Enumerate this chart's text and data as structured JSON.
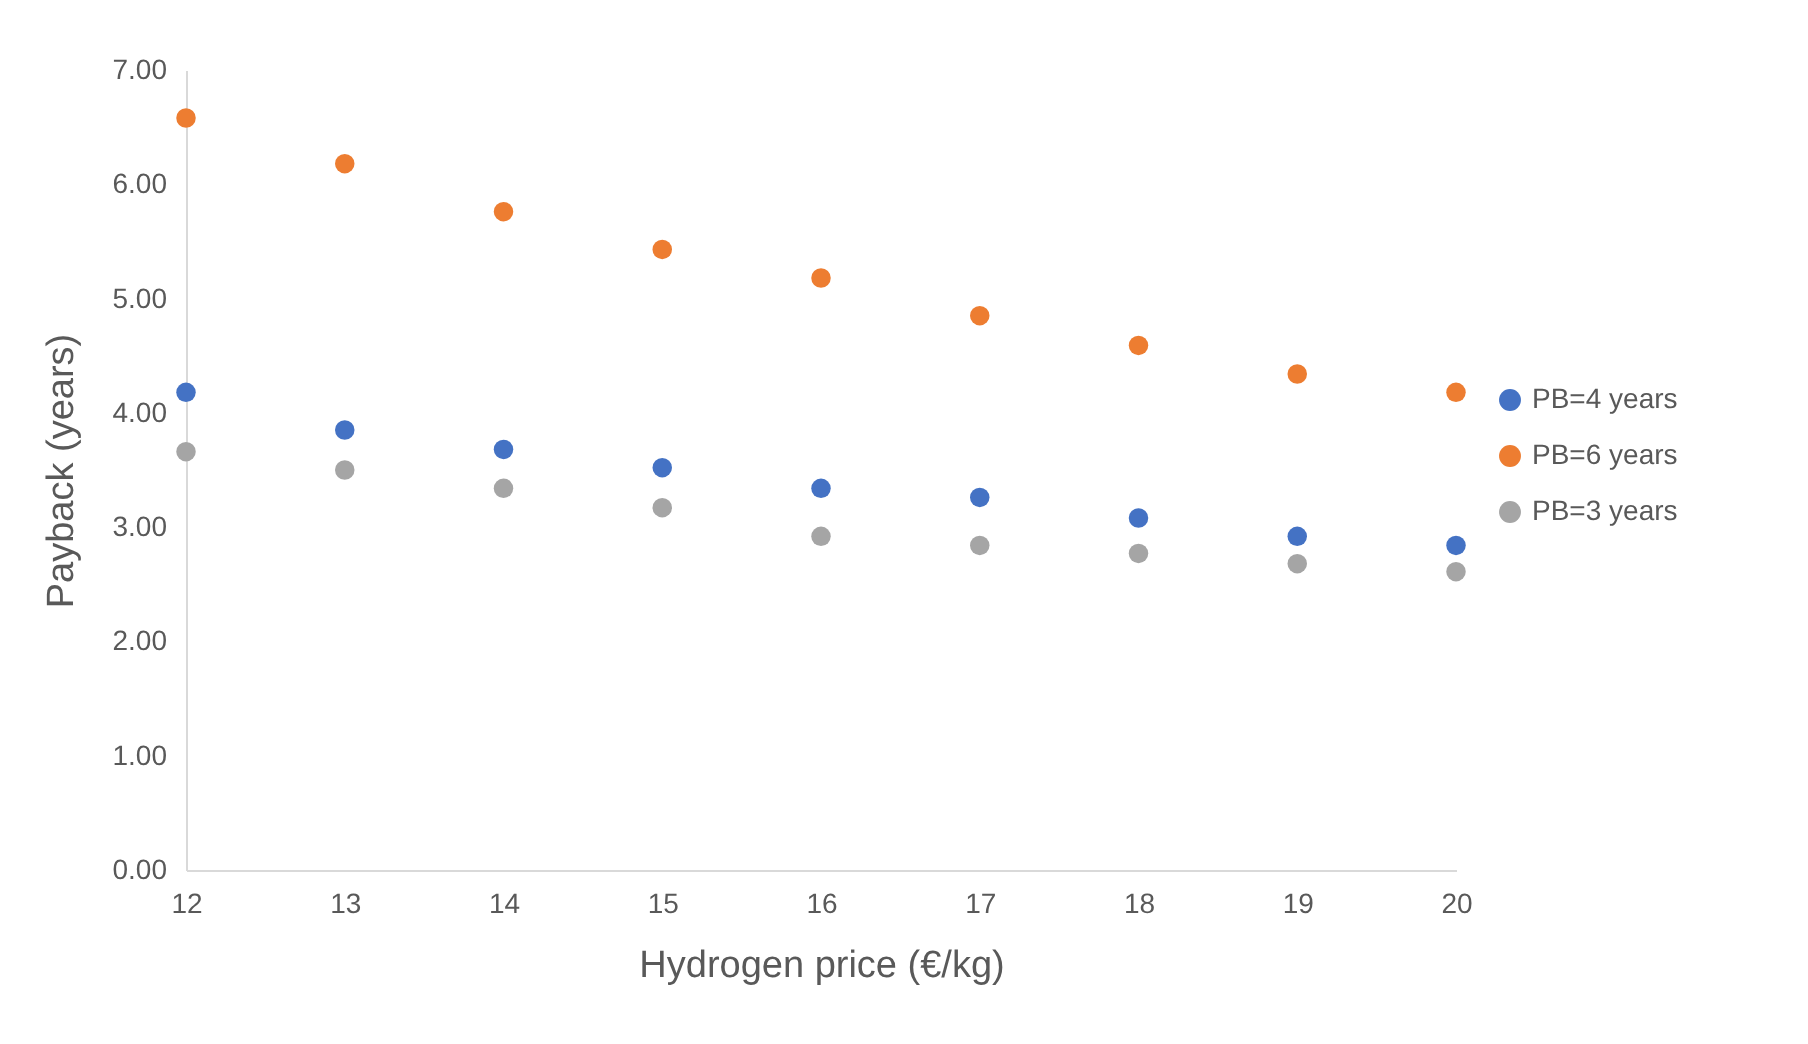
{
  "chart_data": {
    "type": "scatter",
    "xlabel": "Hydrogen price (€/kg)",
    "ylabel": "Payback  (years)",
    "x": [
      12,
      13,
      14,
      15,
      16,
      17,
      18,
      19,
      20
    ],
    "series": [
      {
        "name": "PB=4 years",
        "color": "#4472c4",
        "values": [
          4.18,
          3.85,
          3.68,
          3.52,
          3.34,
          3.26,
          3.08,
          2.92,
          2.84
        ]
      },
      {
        "name": "PB=6 years",
        "color": "#ed7d31",
        "values": [
          6.58,
          6.18,
          5.76,
          5.43,
          5.18,
          4.85,
          4.59,
          4.34,
          4.18
        ]
      },
      {
        "name": "PB=3 years",
        "color": "#a5a5a5",
        "values": [
          3.66,
          3.5,
          3.34,
          3.17,
          2.92,
          2.84,
          2.77,
          2.68,
          2.61
        ]
      }
    ],
    "xlim": [
      12,
      20
    ],
    "xticks": [
      12,
      13,
      14,
      15,
      16,
      17,
      18,
      19,
      20
    ],
    "ylim": [
      0,
      7
    ],
    "yticks": [
      {
        "value": 0,
        "label": "0.00"
      },
      {
        "value": 1,
        "label": "1.00"
      },
      {
        "value": 2,
        "label": "2.00"
      },
      {
        "value": 3,
        "label": "3.00"
      },
      {
        "value": 4,
        "label": "4.00"
      },
      {
        "value": 5,
        "label": "5.00"
      },
      {
        "value": 6,
        "label": "6.00"
      },
      {
        "value": 7,
        "label": "7.00"
      }
    ],
    "marker": "circle",
    "grid": false,
    "legend": "right"
  }
}
